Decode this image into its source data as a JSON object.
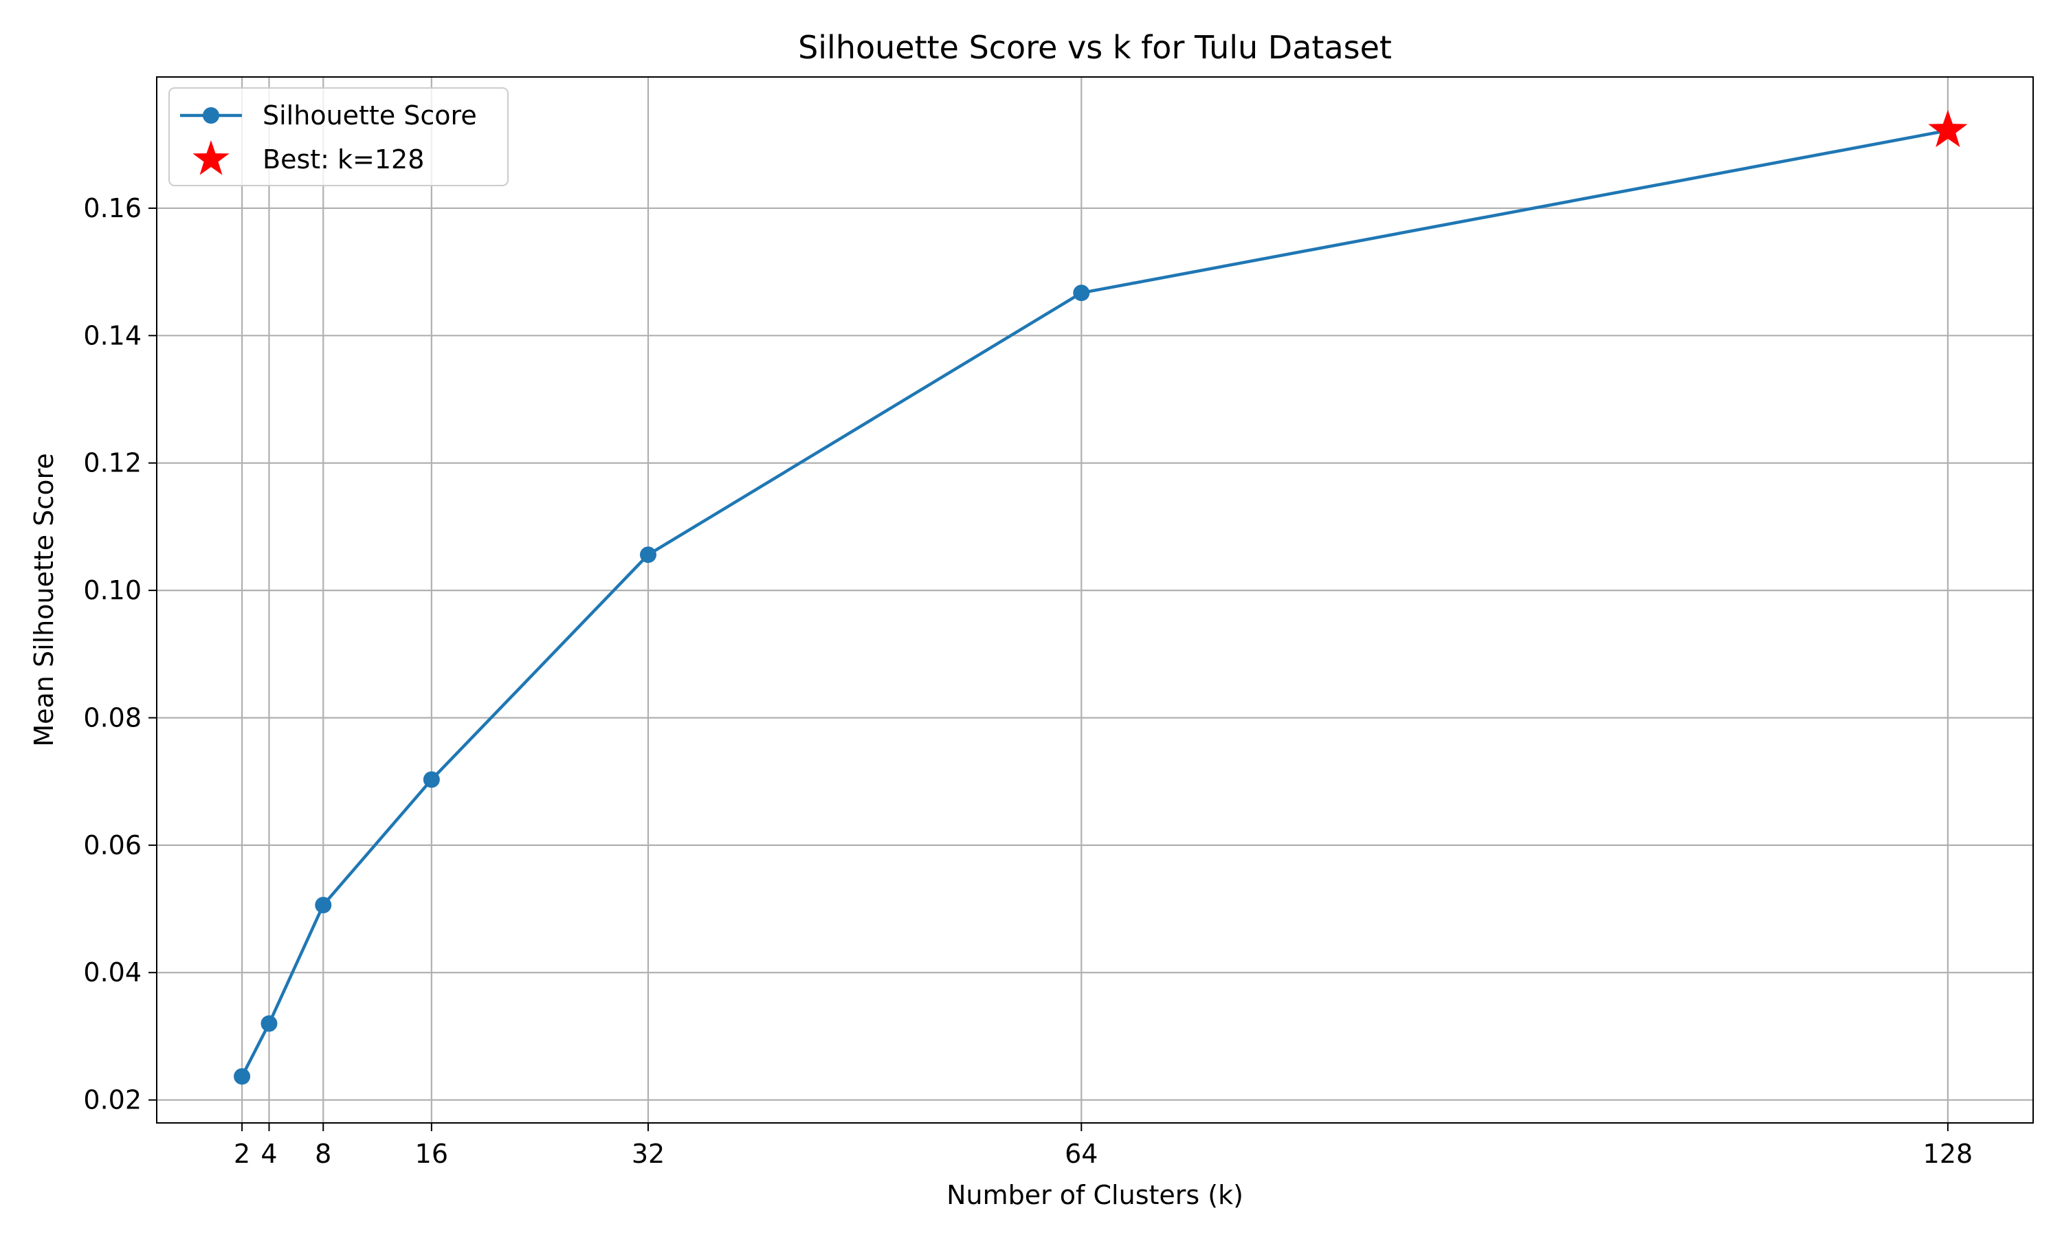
{
  "chart_data": {
    "type": "line",
    "title": "Silhouette Score vs k for Tulu Dataset",
    "xlabel": "Number of Clusters (k)",
    "ylabel": "Mean Silhouette Score",
    "x": [
      2,
      4,
      8,
      16,
      32,
      64,
      128
    ],
    "xticks": [
      2,
      4,
      8,
      16,
      32,
      64,
      128
    ],
    "xtick_labels": [
      "2",
      "4",
      "8",
      "16",
      "32",
      "64",
      "128"
    ],
    "xlim": [
      -4.3,
      134.3
    ],
    "ylim": [
      0.0164,
      0.1806
    ],
    "yticks": [
      0.02,
      0.04,
      0.06,
      0.08,
      0.1,
      0.12,
      0.14,
      0.16
    ],
    "ytick_labels": [
      "0.02",
      "0.04",
      "0.06",
      "0.08",
      "0.10",
      "0.12",
      "0.14",
      "0.16"
    ],
    "grid": true,
    "legend_placement": "upper-left",
    "series": [
      {
        "name": "Silhouette Score",
        "color": "#1f77b4",
        "marker": "circle",
        "values": [
          0.0237,
          0.032,
          0.0506,
          0.0703,
          0.1056,
          0.1467,
          0.1722
        ]
      }
    ],
    "best": {
      "name": "Best: k=128",
      "x": 128,
      "y": 0.1722,
      "color": "#ff0000",
      "marker": "star"
    }
  }
}
